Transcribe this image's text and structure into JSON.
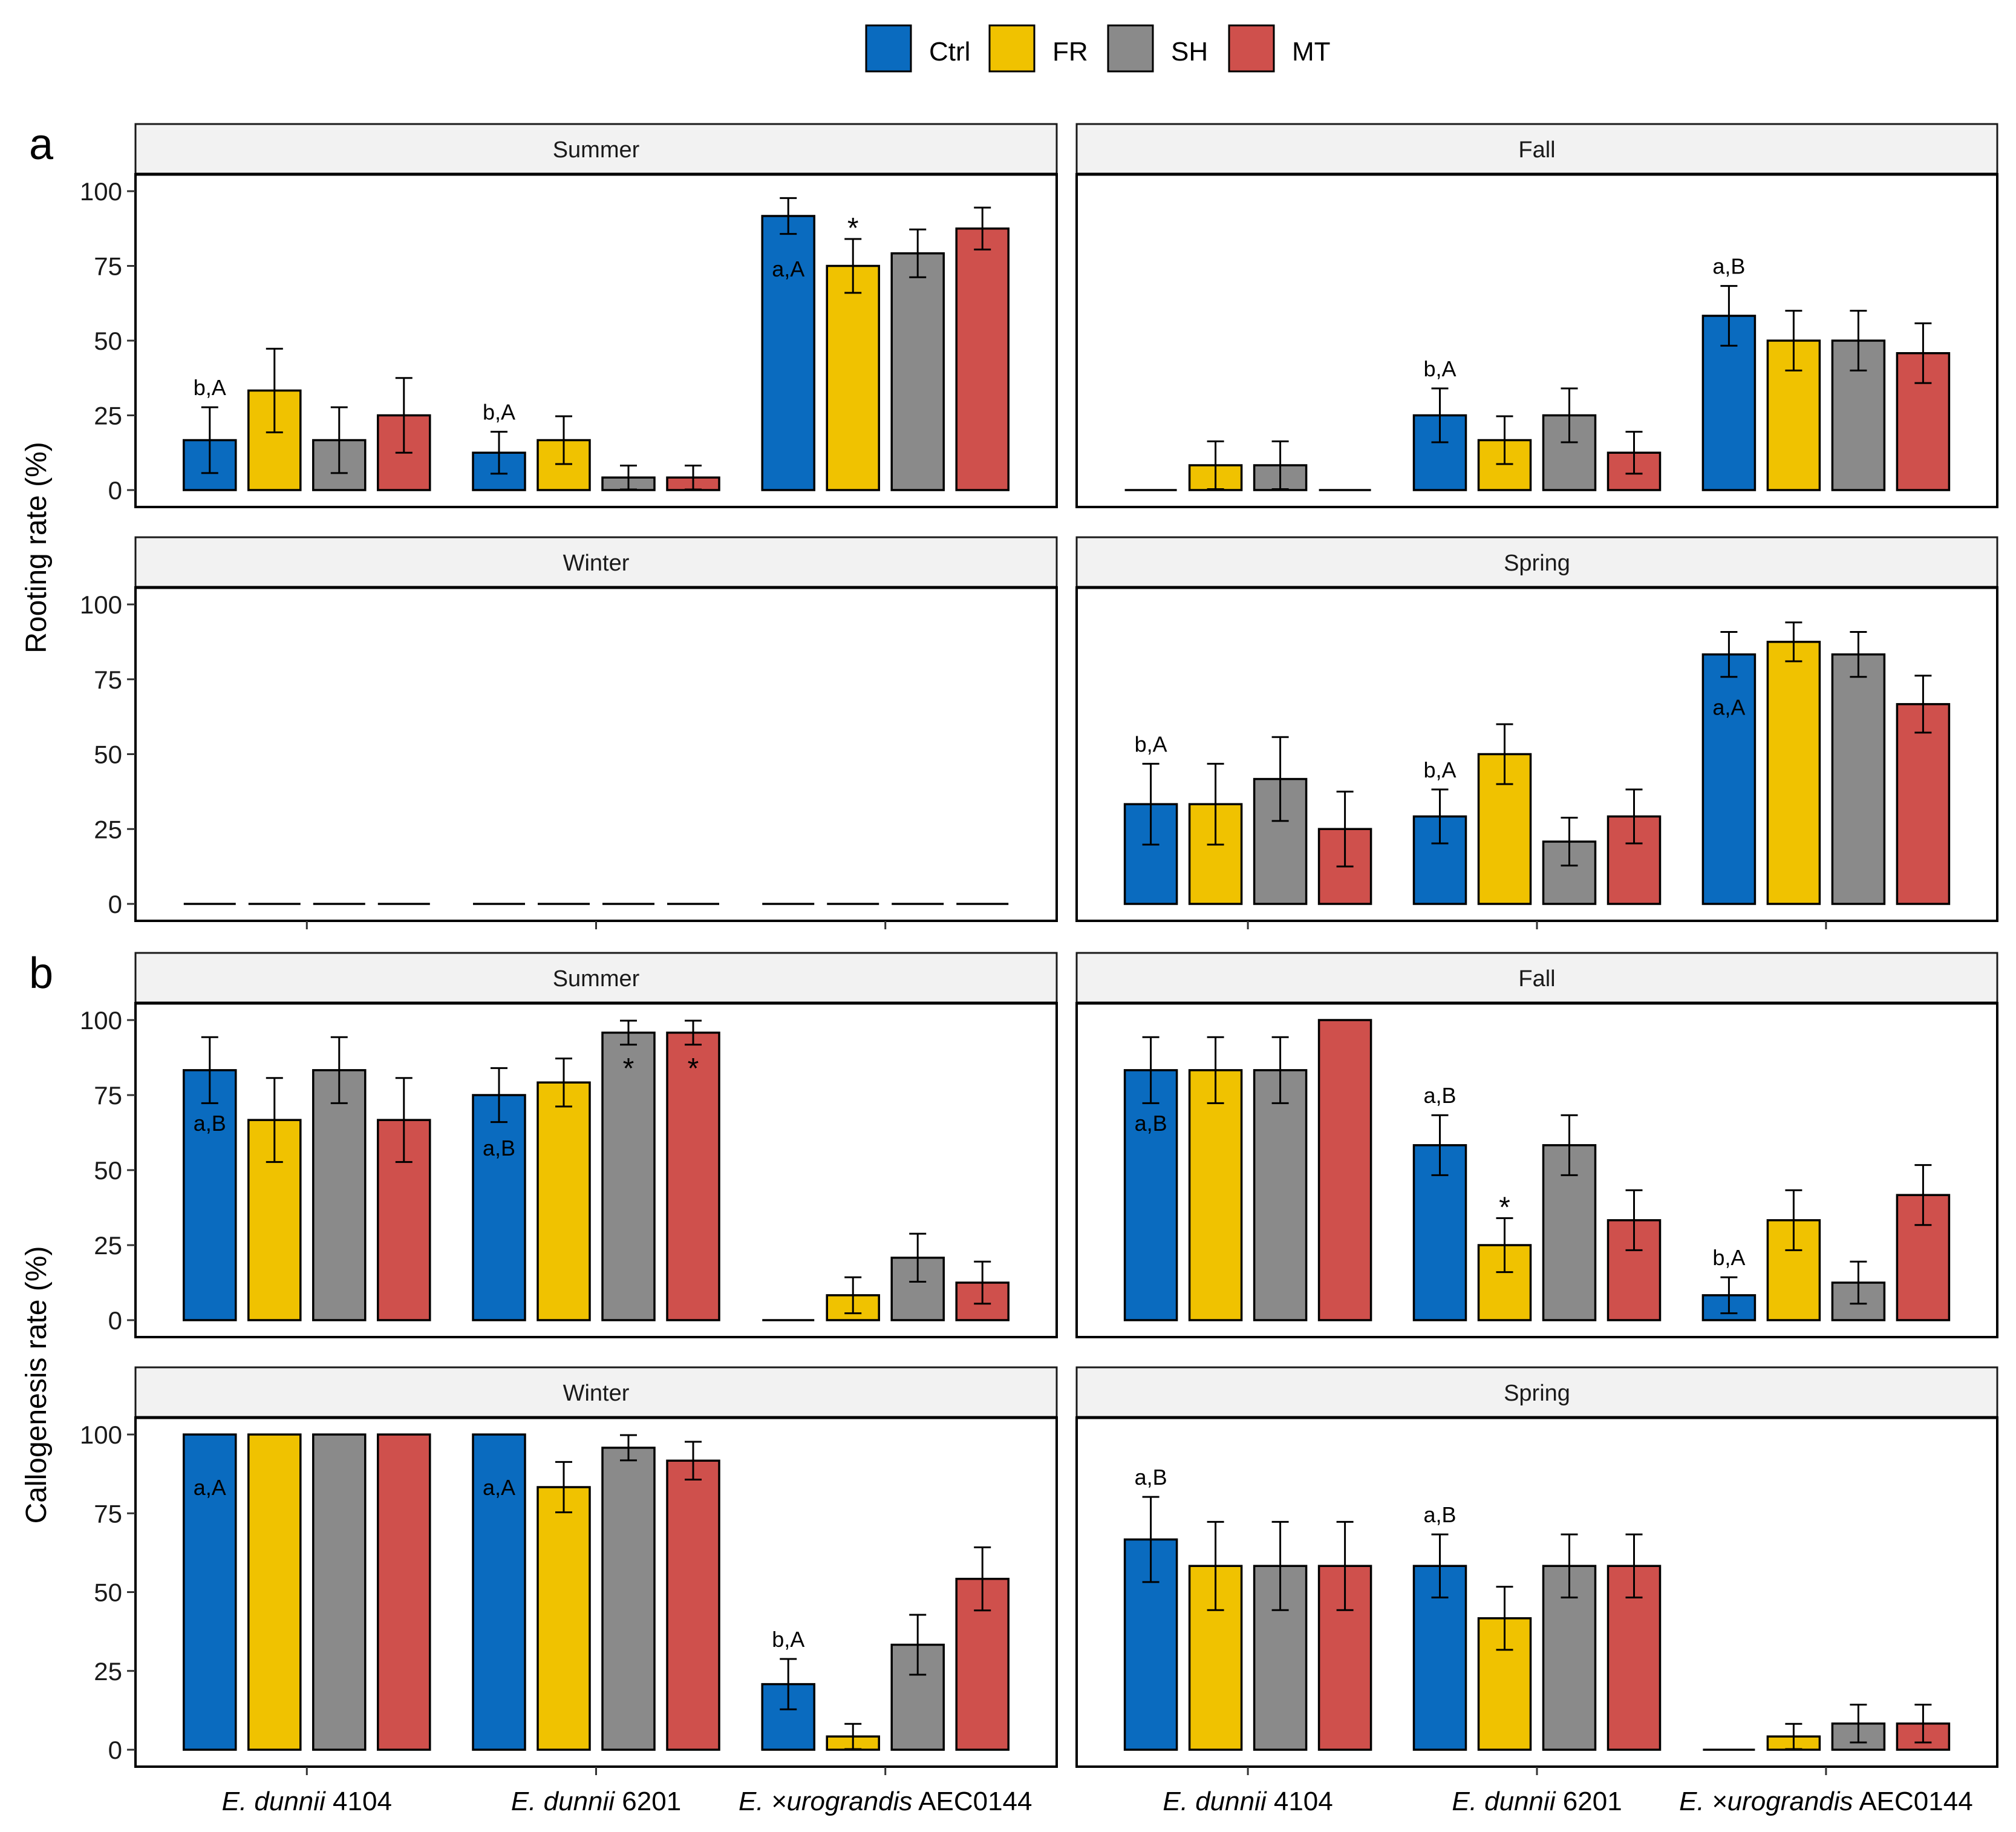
{
  "chart_data": {
    "type": "bar",
    "legend": [
      {
        "name": "Ctrl",
        "color": "#0a6bbf"
      },
      {
        "name": "FR",
        "color": "#f0c200"
      },
      {
        "name": "SH",
        "color": "#8a8a8a"
      },
      {
        "name": "MT",
        "color": "#cf504c"
      }
    ],
    "categories": [
      {
        "italic": "E. dunnii",
        "rest": " 4104"
      },
      {
        "italic": "E. dunnii",
        "rest": " 6201"
      },
      {
        "prefix": "E. ×",
        "italic": "urograndis",
        "rest": " AEC0144"
      }
    ],
    "yticks": [
      "0",
      "25",
      "50",
      "75",
      "100"
    ],
    "ylim": [
      0,
      100
    ],
    "sections": [
      {
        "letter": "a",
        "ylabel": "Rooting rate (%)",
        "panels": [
          {
            "season": "Summer",
            "values": [
              [
                16.7,
                33.3,
                16.7,
                25
              ],
              [
                12.5,
                16.7,
                4.2,
                4.2
              ],
              [
                91.7,
                75,
                79.2,
                87.5
              ]
            ],
            "errors": [
              [
                11,
                14,
                11,
                12.5
              ],
              [
                7,
                8,
                4,
                4
              ],
              [
                6,
                9,
                8,
                7
              ]
            ],
            "annotations": [
              {
                "group": 0,
                "bar": 0,
                "text": "b,A",
                "pos": "above"
              },
              {
                "group": 1,
                "bar": 0,
                "text": "b,A",
                "pos": "above"
              },
              {
                "group": 2,
                "bar": 0,
                "text": "a,A",
                "pos": "inside"
              },
              {
                "group": 2,
                "bar": 1,
                "text": "*",
                "pos": "above"
              }
            ]
          },
          {
            "season": "Fall",
            "values": [
              [
                0,
                8.3,
                8.3,
                0
              ],
              [
                25,
                16.7,
                25,
                12.5
              ],
              [
                58.3,
                50,
                50,
                45.8
              ]
            ],
            "errors": [
              [
                0,
                8,
                8,
                0
              ],
              [
                9,
                8,
                9,
                7
              ],
              [
                10,
                10,
                10,
                10
              ]
            ],
            "annotations": [
              {
                "group": 1,
                "bar": 0,
                "text": "b,A",
                "pos": "above"
              },
              {
                "group": 2,
                "bar": 0,
                "text": "a,B",
                "pos": "above"
              }
            ]
          },
          {
            "season": "Winter",
            "values": [
              [
                0,
                0,
                0,
                0
              ],
              [
                0,
                0,
                0,
                0
              ],
              [
                0,
                0,
                0,
                0
              ]
            ],
            "errors": [
              [
                0,
                0,
                0,
                0
              ],
              [
                0,
                0,
                0,
                0
              ],
              [
                0,
                0,
                0,
                0
              ]
            ],
            "annotations": []
          },
          {
            "season": "Spring",
            "values": [
              [
                33.3,
                33.3,
                41.7,
                25
              ],
              [
                29.2,
                50,
                20.8,
                29.2
              ],
              [
                83.3,
                87.5,
                83.3,
                66.7
              ]
            ],
            "errors": [
              [
                13.5,
                13.5,
                14,
                12.5
              ],
              [
                9,
                10,
                8,
                9
              ],
              [
                7.5,
                6.5,
                7.5,
                9.5
              ]
            ],
            "annotations": [
              {
                "group": 0,
                "bar": 0,
                "text": "b,A",
                "pos": "above"
              },
              {
                "group": 1,
                "bar": 0,
                "text": "b,A",
                "pos": "above"
              },
              {
                "group": 2,
                "bar": 0,
                "text": "a,A",
                "pos": "inside"
              }
            ]
          }
        ]
      },
      {
        "letter": "b",
        "ylabel": "Callogenesis rate (%)",
        "panels": [
          {
            "season": "Summer",
            "values": [
              [
                83.3,
                66.7,
                83.3,
                66.7
              ],
              [
                75,
                79.2,
                95.8,
                95.8
              ],
              [
                0,
                8.3,
                20.8,
                12.5
              ]
            ],
            "errors": [
              [
                11,
                14,
                11,
                14
              ],
              [
                9,
                8,
                4,
                4
              ],
              [
                0,
                6,
                8,
                7
              ]
            ],
            "annotations": [
              {
                "group": 0,
                "bar": 0,
                "text": "a,B",
                "pos": "inside"
              },
              {
                "group": 1,
                "bar": 0,
                "text": "a,B",
                "pos": "inside"
              },
              {
                "group": 1,
                "bar": 2,
                "text": "*",
                "pos": "inside"
              },
              {
                "group": 1,
                "bar": 3,
                "text": "*",
                "pos": "inside"
              }
            ]
          },
          {
            "season": "Fall",
            "values": [
              [
                83.3,
                83.3,
                83.3,
                100
              ],
              [
                58.3,
                25,
                58.3,
                33.3
              ],
              [
                8.3,
                33.3,
                12.5,
                41.7
              ]
            ],
            "errors": [
              [
                11,
                11,
                11,
                0
              ],
              [
                10,
                9,
                10,
                10
              ],
              [
                6,
                10,
                7,
                10
              ]
            ],
            "annotations": [
              {
                "group": 0,
                "bar": 0,
                "text": "a,B",
                "pos": "inside"
              },
              {
                "group": 1,
                "bar": 0,
                "text": "a,B",
                "pos": "above"
              },
              {
                "group": 1,
                "bar": 1,
                "text": "*",
                "pos": "above"
              },
              {
                "group": 2,
                "bar": 0,
                "text": "b,A",
                "pos": "above"
              }
            ]
          },
          {
            "season": "Winter",
            "values": [
              [
                100,
                100,
                100,
                100
              ],
              [
                100,
                83.3,
                95.8,
                91.7
              ],
              [
                20.8,
                4.2,
                33.3,
                54.2
              ]
            ],
            "errors": [
              [
                0,
                0,
                0,
                0
              ],
              [
                0,
                8,
                4,
                6
              ],
              [
                8,
                4,
                9.5,
                10
              ]
            ],
            "annotations": [
              {
                "group": 0,
                "bar": 0,
                "text": "a,A",
                "pos": "inside"
              },
              {
                "group": 1,
                "bar": 0,
                "text": "a,A",
                "pos": "inside"
              },
              {
                "group": 2,
                "bar": 0,
                "text": "b,A",
                "pos": "above"
              }
            ]
          },
          {
            "season": "Spring",
            "values": [
              [
                66.7,
                58.3,
                58.3,
                58.3
              ],
              [
                58.3,
                41.7,
                58.3,
                58.3
              ],
              [
                0,
                4.2,
                8.3,
                8.3
              ]
            ],
            "errors": [
              [
                13.5,
                14,
                14,
                14
              ],
              [
                10,
                10,
                10,
                10
              ],
              [
                0,
                4,
                6,
                6
              ]
            ],
            "annotations": [
              {
                "group": 0,
                "bar": 0,
                "text": "a,B",
                "pos": "above"
              },
              {
                "group": 1,
                "bar": 0,
                "text": "a,B",
                "pos": "above"
              }
            ]
          }
        ]
      }
    ]
  }
}
